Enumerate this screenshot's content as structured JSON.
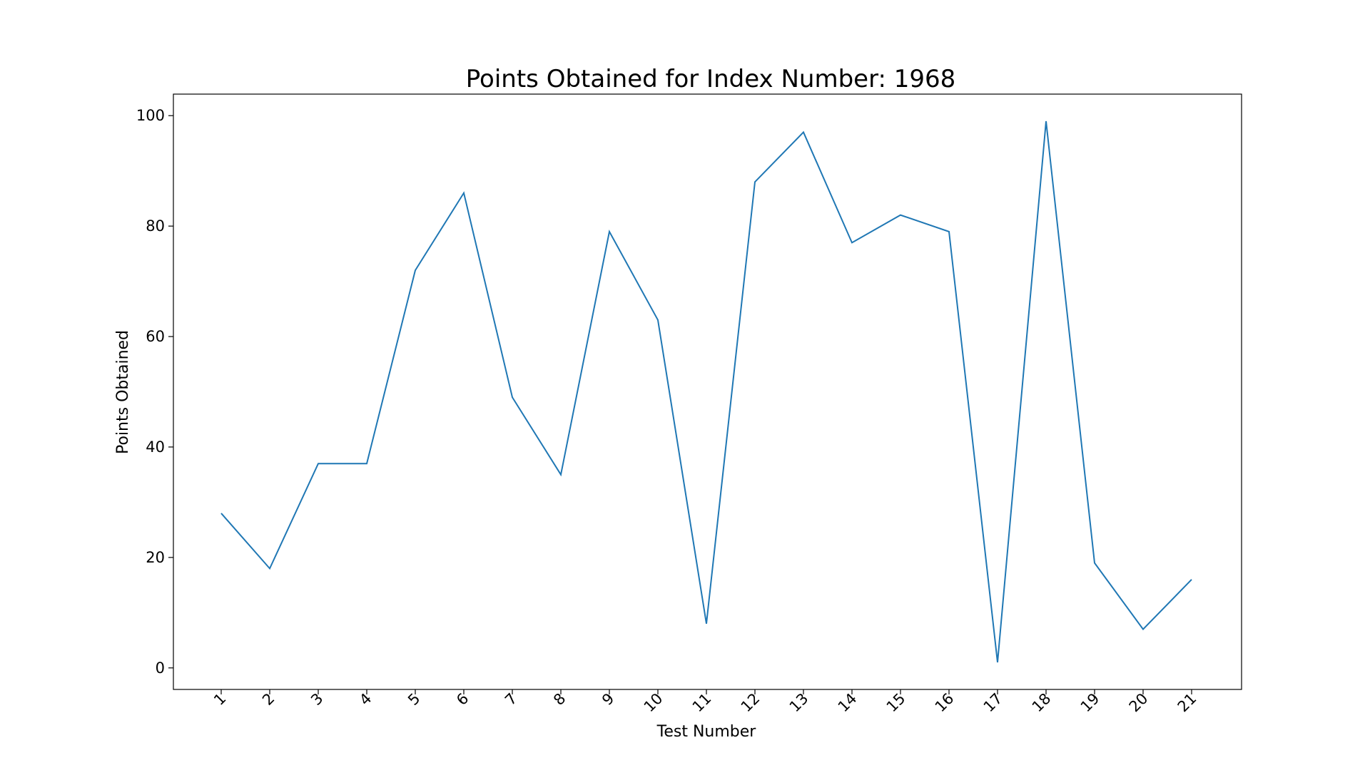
{
  "chart_data": {
    "type": "line",
    "title": "Points Obtained for Index Number: 1968",
    "xlabel": "Test Number",
    "ylabel": "Points Obtained",
    "x": [
      "1",
      "2",
      "3",
      "4",
      "5",
      "6",
      "7",
      "8",
      "9",
      "10",
      "11",
      "12",
      "13",
      "14",
      "15",
      "16",
      "17",
      "18",
      "19",
      "20",
      "21"
    ],
    "series": [
      {
        "values": [
          28,
          18,
          37,
          37,
          72,
          86,
          49,
          35,
          79,
          63,
          8,
          88,
          97,
          77,
          82,
          79,
          1,
          99,
          19,
          7,
          16
        ]
      }
    ],
    "yticks": [
      0,
      20,
      40,
      60,
      80,
      100
    ],
    "ylim": [
      -3.9,
      103.9
    ],
    "grid": false,
    "line_color": "#1f77b4"
  }
}
